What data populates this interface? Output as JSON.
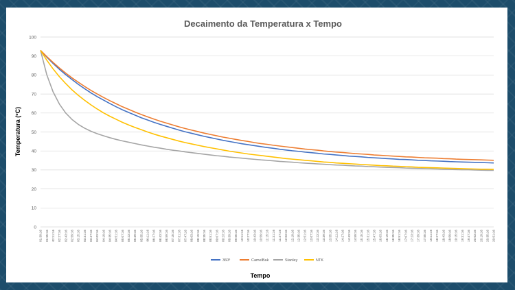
{
  "chart_data": {
    "type": "line",
    "title": "Decaimento da Temperatura x Tempo",
    "xlabel": "Tempo",
    "ylabel": "Temperatura (ºC)",
    "ylim": [
      0,
      100
    ],
    "yticks": [
      0,
      10,
      20,
      30,
      40,
      50,
      60,
      70,
      80,
      90,
      100
    ],
    "grid": "horizontal",
    "legend_position": "bottom",
    "x": [
      "01:39:16",
      "01:55:16",
      "02:11:16",
      "02:27:16",
      "02:43:16",
      "02:59:16",
      "03:15:16",
      "03:31:16",
      "03:47:16",
      "04:03:16",
      "04:19:16",
      "04:35:16",
      "04:51:16",
      "05:07:16",
      "05:23:16",
      "05:39:16",
      "05:55:16",
      "06:11:16",
      "06:27:16",
      "06:43:16",
      "06:59:16",
      "07:15:16",
      "07:31:16",
      "07:47:16",
      "08:03:16",
      "08:19:16",
      "08:35:16",
      "08:51:16",
      "09:07:16",
      "09:23:16",
      "09:39:16",
      "09:55:16",
      "10:11:16",
      "10:27:16",
      "10:43:16",
      "10:59:16",
      "11:15:16",
      "11:31:16",
      "11:47:16",
      "12:03:16",
      "12:19:16",
      "12:35:16",
      "12:51:16",
      "13:07:16",
      "13:23:16",
      "13:39:16",
      "13:55:16",
      "14:11:16",
      "14:27:16",
      "14:43:16",
      "14:59:16",
      "15:15:16",
      "15:31:16",
      "15:47:16",
      "16:03:16",
      "16:19:16",
      "16:35:16",
      "16:51:16",
      "17:07:16",
      "17:23:16",
      "17:39:16",
      "17:55:16",
      "18:11:16",
      "18:27:16",
      "18:43:16",
      "18:59:16",
      "19:15:16",
      "19:31:16",
      "19:47:16",
      "20:03:16",
      "20:19:16",
      "20:35:16",
      "20:51:16"
    ],
    "series": [
      {
        "name": "360º",
        "color": "#4472c4",
        "values": [
          93.0,
          89.4,
          86.1,
          83.0,
          80.2,
          77.6,
          75.1,
          72.8,
          70.6,
          68.6,
          66.8,
          65.0,
          63.3,
          61.7,
          60.3,
          58.9,
          57.5,
          56.3,
          55.1,
          54.0,
          53.0,
          52.0,
          51.0,
          50.1,
          49.3,
          48.5,
          47.7,
          47.0,
          46.3,
          45.6,
          45.0,
          44.4,
          43.8,
          43.3,
          42.8,
          42.3,
          41.8,
          41.4,
          40.9,
          40.5,
          40.1,
          39.8,
          39.4,
          39.1,
          38.8,
          38.4,
          38.2,
          37.9,
          37.6,
          37.3,
          37.1,
          36.9,
          36.6,
          36.4,
          36.2,
          36.0,
          35.8,
          35.6,
          35.5,
          35.3,
          35.1,
          35.0,
          34.8,
          34.7,
          34.6,
          34.4,
          34.3,
          34.2,
          34.1,
          34.0,
          33.9,
          33.8,
          33.7
        ]
      },
      {
        "name": "CamelBak",
        "color": "#ed7d31",
        "values": [
          93.0,
          89.7,
          86.6,
          83.7,
          81.0,
          78.5,
          76.2,
          74.0,
          71.9,
          70.0,
          68.2,
          66.5,
          64.9,
          63.3,
          61.9,
          60.5,
          59.2,
          58.0,
          56.8,
          55.7,
          54.7,
          53.7,
          52.7,
          51.8,
          51.0,
          50.2,
          49.4,
          48.7,
          48.0,
          47.3,
          46.7,
          46.1,
          45.5,
          45.0,
          44.4,
          43.9,
          43.5,
          43.0,
          42.6,
          42.2,
          41.8,
          41.4,
          41.0,
          40.7,
          40.4,
          40.0,
          39.7,
          39.4,
          39.2,
          38.9,
          38.6,
          38.4,
          38.2,
          37.9,
          37.7,
          37.5,
          37.3,
          37.1,
          36.9,
          36.8,
          36.6,
          36.4,
          36.3,
          36.2,
          36.0,
          35.9,
          35.7,
          35.6,
          35.5,
          35.4,
          35.3,
          35.2,
          35.1
        ]
      },
      {
        "name": "Stanley",
        "color": "#a5a5a5",
        "values": [
          93.0,
          80.1,
          71.1,
          64.7,
          60.0,
          56.6,
          54.0,
          52.0,
          50.4,
          49.1,
          48.0,
          47.0,
          46.1,
          45.3,
          44.6,
          43.9,
          43.2,
          42.6,
          42.0,
          41.5,
          40.9,
          40.4,
          40.0,
          39.5,
          39.1,
          38.7,
          38.3,
          37.9,
          37.5,
          37.2,
          36.8,
          36.5,
          36.2,
          35.9,
          35.6,
          35.3,
          35.1,
          34.8,
          34.5,
          34.3,
          34.1,
          33.8,
          33.6,
          33.4,
          33.2,
          33.0,
          32.8,
          32.6,
          32.5,
          32.3,
          32.1,
          32.0,
          31.8,
          31.7,
          31.5,
          31.4,
          31.3,
          31.2,
          31.0,
          30.9,
          30.8,
          30.7,
          30.6,
          30.5,
          30.4,
          30.3,
          30.2,
          30.1,
          30.1,
          30.0,
          29.9,
          29.8,
          29.8
        ]
      },
      {
        "name": "NTK",
        "color": "#ffc000",
        "values": [
          93.0,
          87.8,
          83.2,
          79.1,
          75.5,
          72.2,
          69.3,
          66.7,
          64.3,
          62.1,
          60.1,
          58.3,
          56.7,
          55.1,
          53.7,
          52.4,
          51.2,
          50.0,
          48.9,
          47.9,
          47.0,
          46.1,
          45.2,
          44.4,
          43.7,
          43.0,
          42.3,
          41.7,
          41.1,
          40.5,
          39.9,
          39.4,
          38.9,
          38.4,
          38.0,
          37.6,
          37.2,
          36.8,
          36.4,
          36.0,
          35.7,
          35.4,
          35.1,
          34.8,
          34.5,
          34.2,
          34.0,
          33.7,
          33.5,
          33.3,
          33.1,
          32.9,
          32.7,
          32.5,
          32.3,
          32.2,
          32.0,
          31.9,
          31.7,
          31.6,
          31.4,
          31.3,
          31.2,
          31.1,
          31.0,
          30.9,
          30.8,
          30.7,
          30.6,
          30.5,
          30.4,
          30.4,
          30.3
        ]
      }
    ]
  }
}
